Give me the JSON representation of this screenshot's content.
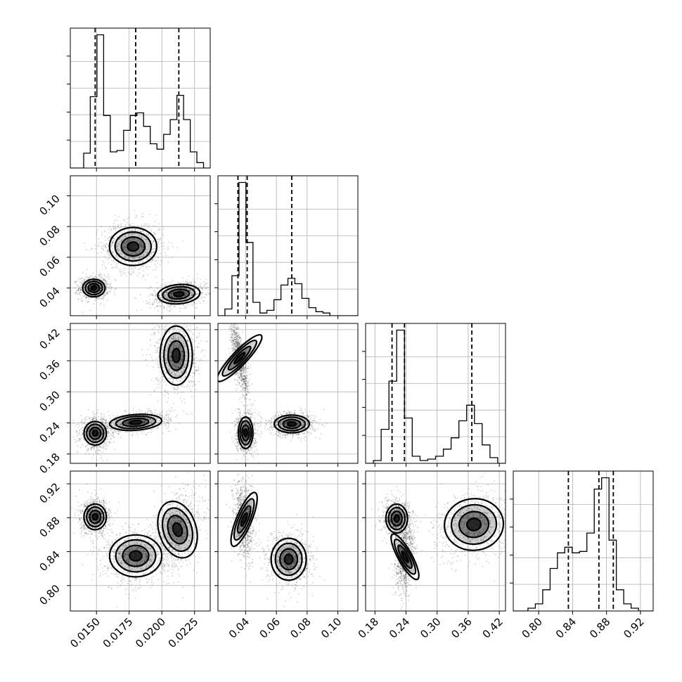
{
  "chart_data": {
    "type": "corner",
    "parameters": [
      {
        "range": [
          0.013,
          0.0237
        ],
        "ticks": [
          0.015,
          0.0175,
          0.02,
          0.0225
        ],
        "tick_labels": [
          "0.0150",
          "0.0175",
          "0.0200",
          "0.0225"
        ],
        "quantiles": [
          0.0149,
          0.018,
          0.0213
        ],
        "histogram": [
          0.0,
          0.0,
          0.11,
          0.53,
          0.99,
          0.39,
          0.12,
          0.13,
          0.28,
          0.39,
          0.41,
          0.31,
          0.18,
          0.14,
          0.25,
          0.36,
          0.54,
          0.36,
          0.12,
          0.04,
          0.0
        ]
      },
      {
        "range": [
          0.022,
          0.113
        ],
        "ticks": [
          0.04,
          0.06,
          0.08,
          0.1
        ],
        "tick_labels": [
          "0.04",
          "0.06",
          "0.08",
          "0.10"
        ],
        "quantiles": [
          0.035,
          0.041,
          0.07
        ],
        "histogram": [
          0.0,
          0.05,
          0.3,
          1.0,
          0.55,
          0.1,
          0.02,
          0.04,
          0.12,
          0.23,
          0.28,
          0.24,
          0.13,
          0.06,
          0.03,
          0.02,
          0.0,
          0.0,
          0.0,
          0.0
        ]
      },
      {
        "range": [
          0.162,
          0.432
        ],
        "ticks": [
          0.18,
          0.24,
          0.3,
          0.36,
          0.42
        ],
        "tick_labels": [
          "0.18",
          "0.24",
          "0.30",
          "0.36",
          "0.42"
        ],
        "quantiles": [
          0.213,
          0.237,
          0.367
        ],
        "histogram": [
          0.0,
          0.02,
          0.24,
          0.58,
          0.94,
          0.32,
          0.05,
          0.02,
          0.03,
          0.05,
          0.1,
          0.18,
          0.3,
          0.41,
          0.28,
          0.13,
          0.04,
          0.0
        ]
      },
      {
        "range": [
          0.77,
          0.935
        ],
        "ticks": [
          0.8,
          0.84,
          0.88,
          0.92
        ],
        "tick_labels": [
          "0.80",
          "0.84",
          "0.88",
          "0.92"
        ],
        "quantiles": [
          0.835,
          0.871,
          0.888
        ],
        "histogram": [
          0.0,
          0.0,
          0.02,
          0.05,
          0.15,
          0.3,
          0.41,
          0.45,
          0.41,
          0.42,
          0.55,
          0.86,
          0.94,
          0.5,
          0.15,
          0.05,
          0.02,
          0.0,
          0.0
        ]
      }
    ],
    "joint": {
      "1-0": [
        {
          "center": [
            0.0148,
            0.04
          ],
          "spread": [
            0.00045,
            0.003
          ],
          "corr": 0.0
        },
        {
          "center": [
            0.0178,
            0.067
          ],
          "spread": [
            0.00095,
            0.0065
          ],
          "corr": 0.0
        },
        {
          "center": [
            0.0213,
            0.036
          ],
          "spread": [
            0.00085,
            0.0033
          ],
          "corr": 0.3
        }
      ],
      "2-0": [
        {
          "center": [
            0.0149,
            0.22
          ],
          "spread": [
            0.00045,
            0.012
          ],
          "corr": 0.0
        },
        {
          "center": [
            0.018,
            0.241
          ],
          "spread": [
            0.00105,
            0.008
          ],
          "corr": 0.4
        },
        {
          "center": [
            0.0211,
            0.37
          ],
          "spread": [
            0.00065,
            0.03
          ],
          "corr": 0.0
        }
      ],
      "2-1": [
        {
          "center": [
            0.036,
            0.365
          ],
          "spread": [
            0.0025,
            0.032
          ],
          "corr": -0.75
        },
        {
          "center": [
            0.04,
            0.221
          ],
          "spread": [
            0.0025,
            0.016
          ],
          "corr": 0.0
        },
        {
          "center": [
            0.07,
            0.238
          ],
          "spread": [
            0.006,
            0.009
          ],
          "corr": 0.0
        }
      ],
      "3-0": [
        {
          "center": [
            0.0149,
            0.881
          ],
          "spread": [
            0.00045,
            0.008
          ],
          "corr": 0.0
        },
        {
          "center": [
            0.018,
            0.835
          ],
          "spread": [
            0.00105,
            0.013
          ],
          "corr": 0.0
        },
        {
          "center": [
            0.0212,
            0.866
          ],
          "spread": [
            0.00075,
            0.018
          ],
          "corr": 0.35
        }
      ],
      "3-1": [
        {
          "center": [
            0.039,
            0.878
          ],
          "spread": [
            0.0026,
            0.018
          ],
          "corr": -0.2
        },
        {
          "center": [
            0.068,
            0.831
          ],
          "spread": [
            0.006,
            0.013
          ],
          "corr": 0.0
        }
      ],
      "3-2": [
        {
          "center": [
            0.222,
            0.879
          ],
          "spread": [
            0.011,
            0.009
          ],
          "corr": 0.0
        },
        {
          "center": [
            0.238,
            0.834
          ],
          "spread": [
            0.007,
            0.016
          ],
          "corr": 0.3
        },
        {
          "center": [
            0.371,
            0.872
          ],
          "spread": [
            0.03,
            0.016
          ],
          "corr": 0.2
        }
      ]
    }
  }
}
